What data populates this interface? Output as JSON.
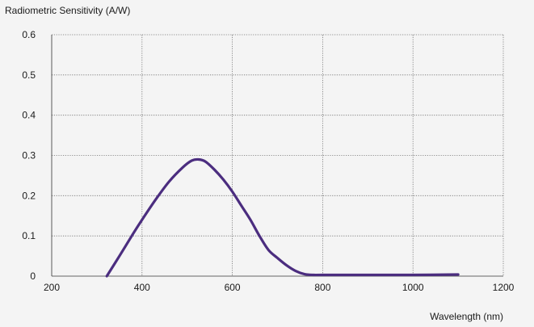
{
  "chart_data": {
    "type": "line",
    "title": "",
    "ylabel": "Radiometric Sensitivity (A/W)",
    "xlabel": "Wavelength (nm)",
    "xlim": [
      200,
      1200
    ],
    "ylim": [
      0,
      0.6
    ],
    "x_ticks": [
      200,
      400,
      600,
      800,
      1000,
      1200
    ],
    "y_ticks": [
      0,
      0.1,
      0.2,
      0.3,
      0.4,
      0.5,
      0.6
    ],
    "x_tick_labels": [
      "200",
      "400",
      "600",
      "800",
      "1000",
      "1200"
    ],
    "y_tick_labels": [
      "0",
      "0.1",
      "0.2",
      "0.3",
      "0.4",
      "0.5",
      "0.6"
    ],
    "grid": true,
    "line_color": "#4b2d7f",
    "series": [
      {
        "x": [
          322,
          350,
          380,
          400,
          430,
          460,
          490,
          510,
          525,
          540,
          560,
          580,
          600,
          620,
          640,
          660,
          680,
          700,
          720,
          740,
          760,
          780,
          800,
          900,
          1000,
          1100
        ],
        "y": [
          0.0,
          0.05,
          0.105,
          0.14,
          0.19,
          0.235,
          0.27,
          0.287,
          0.29,
          0.285,
          0.265,
          0.24,
          0.21,
          0.175,
          0.14,
          0.1,
          0.065,
          0.045,
          0.027,
          0.013,
          0.005,
          0.003,
          0.003,
          0.003,
          0.003,
          0.004
        ]
      }
    ]
  }
}
